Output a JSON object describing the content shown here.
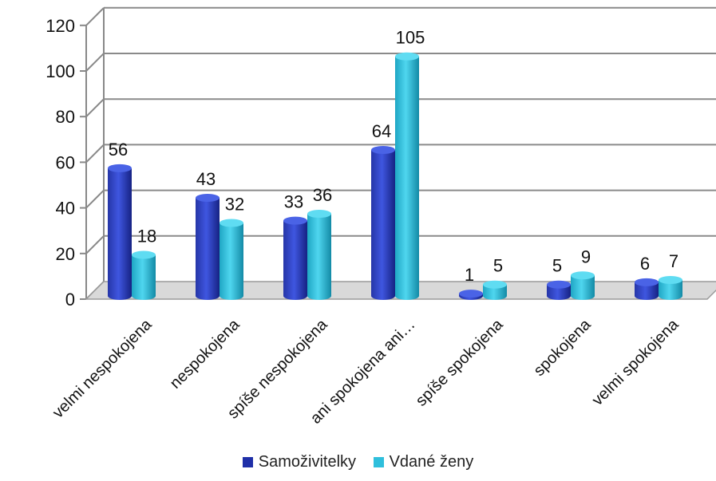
{
  "chart_data": {
    "type": "bar",
    "title": "",
    "xlabel": "",
    "ylabel": "",
    "ylim": [
      0,
      120
    ],
    "yticks": [
      0,
      20,
      40,
      60,
      80,
      100,
      120
    ],
    "grid": true,
    "legend_position": "bottom",
    "categories": [
      "velmi nespokojena",
      "nespokojena",
      "spíše nespokojena",
      "ani spokojena ani…",
      "spíše spokojena",
      "spokojena",
      "velmi spokojena"
    ],
    "series": [
      {
        "name": "Samoživitelky",
        "values": [
          56,
          43,
          33,
          64,
          1,
          5,
          6
        ],
        "color": "#2b3fc4"
      },
      {
        "name": "Vdané ženy",
        "values": [
          18,
          32,
          36,
          105,
          5,
          9,
          7
        ],
        "color": "#2fbfdc"
      }
    ]
  }
}
